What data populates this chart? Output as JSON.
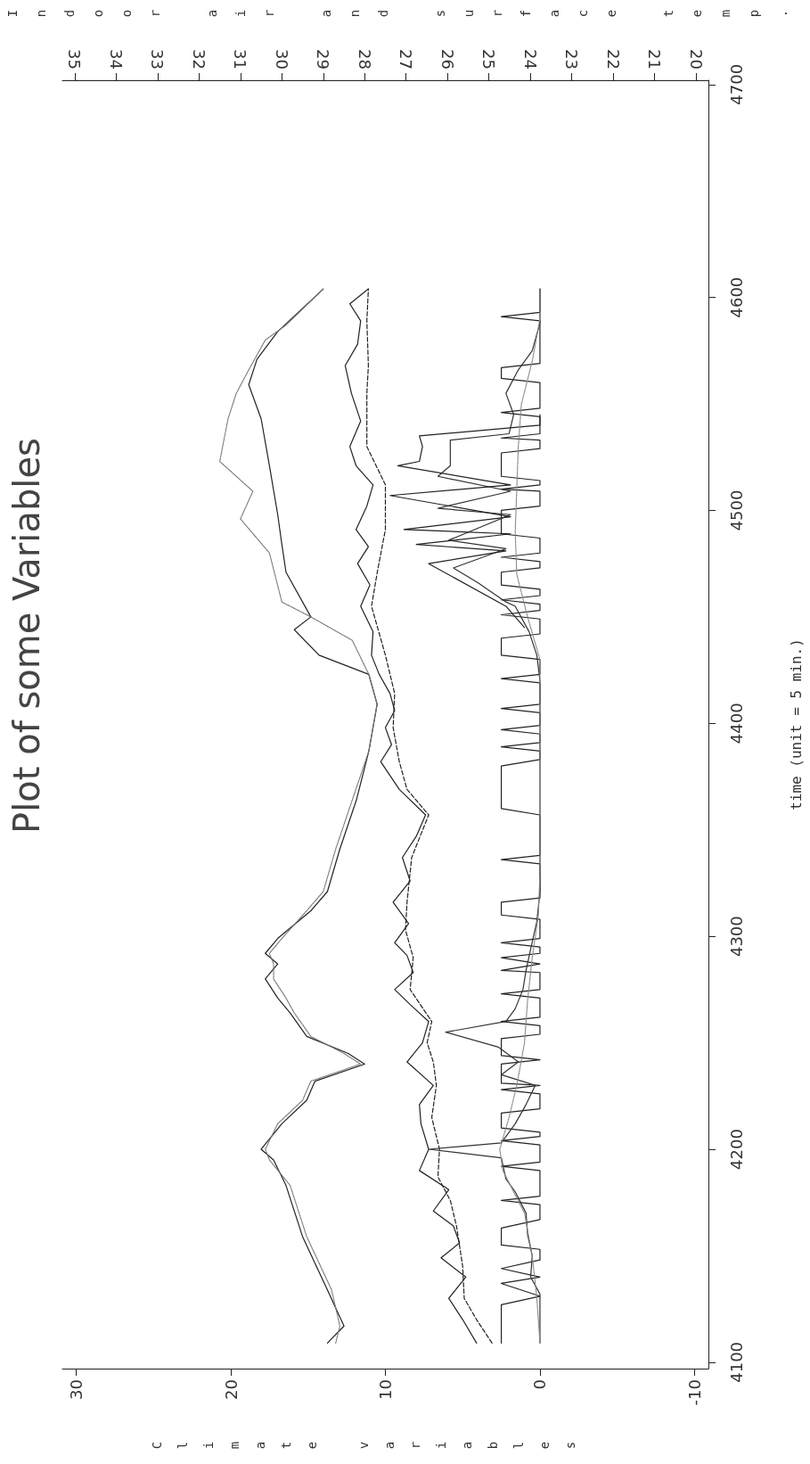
{
  "chart_data": {
    "type": "line",
    "title": "Plot of some Variables",
    "ylabel": "time (unit = 5 min.)",
    "xlabel": "Climate variables",
    "x2label": "Indoor air and surface temp.",
    "ylim": [
      4097,
      4702
    ],
    "yticks": [
      4100,
      4200,
      4300,
      4400,
      4500,
      4600,
      4700
    ],
    "xlim": [
      30.9,
      -10.9
    ],
    "xticks": [
      -10,
      0,
      10,
      20,
      30
    ],
    "x2lim": [
      35.3,
      19.7
    ],
    "x2ticks": [
      20,
      21,
      22,
      23,
      24,
      25,
      26,
      27,
      28,
      29,
      30,
      31,
      32,
      33,
      34,
      35
    ],
    "grid": false,
    "marker": "none",
    "series": [
      {
        "color": "#222222",
        "axis": "x2",
        "line_style": "solid",
        "values": [
          4109,
          4117,
          4134,
          4159,
          4183,
          4195,
          4200,
          4212,
          4223,
          4232,
          4240,
          4245,
          4253,
          4264,
          4271,
          4280,
          4287,
          4292,
          4299,
          4312,
          4321,
          4341,
          4364,
          4387,
          4409,
          4423,
          4432,
          4444,
          4450,
          4471,
          4484,
          4498,
          4521,
          4543,
          4559,
          4571,
          4584,
          4604
        ],
        "x": [
          28.9,
          28.5,
          28.9,
          29.5,
          29.9,
          30.2,
          30.5,
          30.0,
          29.4,
          29.2,
          28.0,
          28.4,
          29.4,
          29.8,
          30.1,
          30.4,
          30.1,
          30.4,
          30.1,
          29.3,
          28.9,
          28.6,
          28.2,
          27.9,
          27.7,
          27.9,
          29.1,
          29.7,
          29.3,
          29.9,
          30.0,
          30.1,
          30.3,
          30.5,
          30.8,
          30.6,
          30.1,
          29.0
        ]
      },
      {
        "color": "#777777",
        "axis": "x2",
        "line_style": "dotted",
        "values": [
          4109,
          4117,
          4134,
          4159,
          4183,
          4195,
          4200,
          4212,
          4223,
          4232,
          4240,
          4245,
          4253,
          4264,
          4271,
          4280,
          4287,
          4292,
          4299,
          4312,
          4321,
          4341,
          4364,
          4387,
          4409,
          4423,
          4439,
          4450,
          4457,
          4480,
          4496,
          4509,
          4523,
          4543,
          4555,
          4566,
          4580,
          4587,
          4604
        ],
        "x": [
          28.7,
          28.6,
          28.8,
          29.4,
          29.8,
          30.3,
          30.4,
          30.1,
          29.5,
          29.3,
          28.1,
          28.5,
          29.3,
          29.7,
          29.9,
          30.2,
          30.2,
          30.3,
          30.0,
          29.4,
          29.0,
          28.7,
          28.3,
          27.9,
          27.7,
          27.9,
          28.3,
          29.3,
          30.0,
          30.3,
          31.0,
          30.7,
          31.5,
          31.3,
          31.1,
          30.8,
          30.4,
          29.9,
          29.0
        ]
      },
      {
        "color": "#222222",
        "line_style": "solid",
        "values": [
          4109,
          4120,
          4130,
          4140,
          4149,
          4156,
          4164,
          4171,
          4181,
          4190,
          4200,
          4212,
          4221,
          4230,
          4241,
          4250,
          4260,
          4268,
          4275,
          4283,
          4291,
          4297,
          4306,
          4316,
          4326,
          4337,
          4347,
          4357,
          4369,
          4382,
          4390,
          4398,
          4406,
          4414,
          4423,
          4432,
          4443,
          4455,
          4465,
          4475,
          4483,
          4491,
          4502,
          4512,
          4521,
          4530,
          4542,
          4555,
          4568,
          4578,
          4589,
          4597,
          4604
        ],
        "x": [
          4.1,
          5.0,
          5.9,
          4.8,
          6.4,
          5.2,
          5.6,
          6.9,
          5.9,
          7.8,
          7.2,
          7.7,
          7.8,
          6.9,
          8.6,
          7.6,
          7.2,
          8.4,
          9.4,
          8.2,
          8.6,
          9.4,
          8.5,
          9.5,
          8.4,
          8.9,
          8.0,
          7.4,
          9.1,
          10.3,
          9.6,
          10.0,
          9.4,
          9.7,
          10.4,
          10.9,
          10.8,
          11.6,
          11.0,
          11.8,
          11.1,
          11.9,
          11.2,
          10.8,
          11.9,
          12.3,
          11.6,
          12.2,
          12.6,
          11.8,
          11.6,
          12.3,
          11.1
        ]
      },
      {
        "color": "#222222",
        "line_style": "dashed",
        "values": [
          4109,
          4120,
          4130,
          4145,
          4164,
          4176,
          4187,
          4200,
          4215,
          4230,
          4241,
          4250,
          4260,
          4275,
          4290,
          4303,
          4316,
          4337,
          4357,
          4369,
          4382,
          4398,
          4414,
          4432,
          4455,
          4472,
          4491,
          4512,
          4530,
          4555,
          4568,
          4589,
          4604
        ],
        "x": [
          3.1,
          4.1,
          4.9,
          5.0,
          5.4,
          5.8,
          6.6,
          6.5,
          7.0,
          6.7,
          6.9,
          7.3,
          7.0,
          8.4,
          8.2,
          8.7,
          8.6,
          8.3,
          7.2,
          8.6,
          9.1,
          9.5,
          9.4,
          10.0,
          10.9,
          10.5,
          10.0,
          10.0,
          11.2,
          11.2,
          11.1,
          11.2,
          11.1
        ]
      },
      {
        "color": "#222222",
        "line_style": "solid",
        "values": [
          4109,
          4127,
          4131,
          4137,
          4140,
          4144,
          4148,
          4153,
          4155,
          4163,
          4167,
          4174,
          4176,
          4178,
          4190,
          4192,
          4194,
          4202,
          4204,
          4206,
          4208,
          4210,
          4217,
          4219,
          4226,
          4228,
          4230,
          4231,
          4240,
          4242,
          4244,
          4252,
          4254,
          4258,
          4260,
          4262,
          4271,
          4273,
          4275,
          4283,
          4284,
          4287,
          4290,
          4292,
          4295,
          4297,
          4299,
          4308,
          4310,
          4316,
          4318,
          4334,
          4336,
          4338,
          4357,
          4360,
          4380,
          4383,
          4387,
          4389,
          4391,
          4395,
          4397,
          4399,
          4405,
          4407,
          4409,
          4419,
          4421,
          4423,
          4430,
          4432,
          4440,
          4442,
          4449,
          4451,
          4453,
          4456,
          4458,
          4460,
          4463,
          4465,
          4471,
          4473,
          4476,
          4478,
          4480,
          4487,
          4489,
          4500,
          4502,
          4509,
          4510,
          4512,
          4514,
          4516,
          4527,
          4529,
          4533,
          4534,
          4536,
          4544,
          4546,
          4548,
          4560,
          4562,
          4567,
          4569,
          4589,
          4591,
          4593,
          4604
        ],
        "x": [
          2.5,
          2.5,
          0,
          2.5,
          0,
          2.5,
          0,
          0,
          2.5,
          2.5,
          0,
          0,
          2.5,
          0,
          0,
          2.5,
          0,
          0,
          2.5,
          0,
          0,
          2.5,
          2.5,
          0,
          0,
          2.5,
          0,
          2.5,
          2.5,
          0,
          2.5,
          2.5,
          0,
          0,
          2.5,
          0,
          0,
          2.5,
          0,
          0,
          2.5,
          0,
          2.5,
          0,
          0,
          2.5,
          0,
          0,
          2.5,
          2.5,
          0,
          0,
          2.5,
          0,
          0,
          2.5,
          2.5,
          0,
          0,
          2.5,
          0,
          0,
          2.5,
          0,
          0,
          2.5,
          0,
          0,
          2.5,
          0,
          0,
          2.5,
          2.5,
          0,
          0,
          2.5,
          0,
          0,
          2.5,
          0,
          0,
          2.5,
          2.5,
          0,
          0,
          2.5,
          0,
          0,
          2.5,
          2.5,
          0,
          0,
          2.5,
          0,
          0,
          2.5,
          2.5,
          0,
          0,
          2.5,
          0,
          0,
          2.5,
          0,
          0,
          2.5,
          2.5,
          0,
          0,
          2.5,
          0,
          0
        ]
      },
      {
        "color": "#333333",
        "line_style": "solid",
        "values": [
          4109,
          4132,
          4140,
          4150,
          4160,
          4170,
          4180,
          4186,
          4196,
          4200,
          4203,
          4212,
          4221,
          4230,
          4235,
          4241,
          4248,
          4255,
          4260,
          4266,
          4275,
          4284,
          4294,
          4307,
          4321,
          4420,
          4432,
          4443,
          4455,
          4457,
          4466,
          4473,
          4482,
          4486,
          4498,
          4501,
          4509,
          4516,
          4521,
          4533,
          4536,
          4545,
          4555,
          4566,
          4575,
          4588,
          4604
        ],
        "x": [
          0,
          0,
          0.6,
          0.5,
          0.8,
          0.9,
          1.6,
          2.2,
          2.5,
          7.2,
          2.5,
          1.6,
          0.9,
          0.3,
          2.5,
          1.4,
          2.7,
          6.1,
          2.2,
          1.6,
          1.1,
          0.9,
          0.6,
          0.2,
          0,
          0,
          0.2,
          0.7,
          1.6,
          2.2,
          4.0,
          5.6,
          2.2,
          5.9,
          1.9,
          6.6,
          1.9,
          6.6,
          5.8,
          5.8,
          2.0,
          1.7,
          2.2,
          1.4,
          0.5,
          0,
          0
        ]
      },
      {
        "color": "#222222",
        "line_style": "solid",
        "values": [
          4445,
          4455,
          4475,
          4481,
          4484,
          4489,
          4491,
          4497,
          4507,
          4512,
          4521,
          4523,
          4530,
          4535,
          4540,
          4545
        ],
        "x": [
          1.0,
          2.2,
          7.2,
          2.2,
          8.0,
          1.9,
          8.8,
          1.9,
          9.7,
          1.9,
          9.2,
          7.8,
          7.6,
          7.8,
          0,
          0
        ]
      },
      {
        "color": "#888888",
        "line_style": "dotted",
        "values": [
          4109,
          4130,
          4150,
          4170,
          4190,
          4200,
          4215,
          4230,
          4250,
          4270,
          4290,
          4310,
          4330,
          4430,
          4450,
          4470,
          4490,
          4510,
          4530,
          4550,
          4570,
          4590,
          4604
        ],
        "x": [
          0,
          0.2,
          0.5,
          1.0,
          2.4,
          2.6,
          2.0,
          1.5,
          1.0,
          0.8,
          0.5,
          0.1,
          0,
          0,
          0.8,
          1.5,
          1.6,
          1.5,
          1.4,
          1.2,
          0.5,
          0,
          0
        ]
      }
    ]
  }
}
